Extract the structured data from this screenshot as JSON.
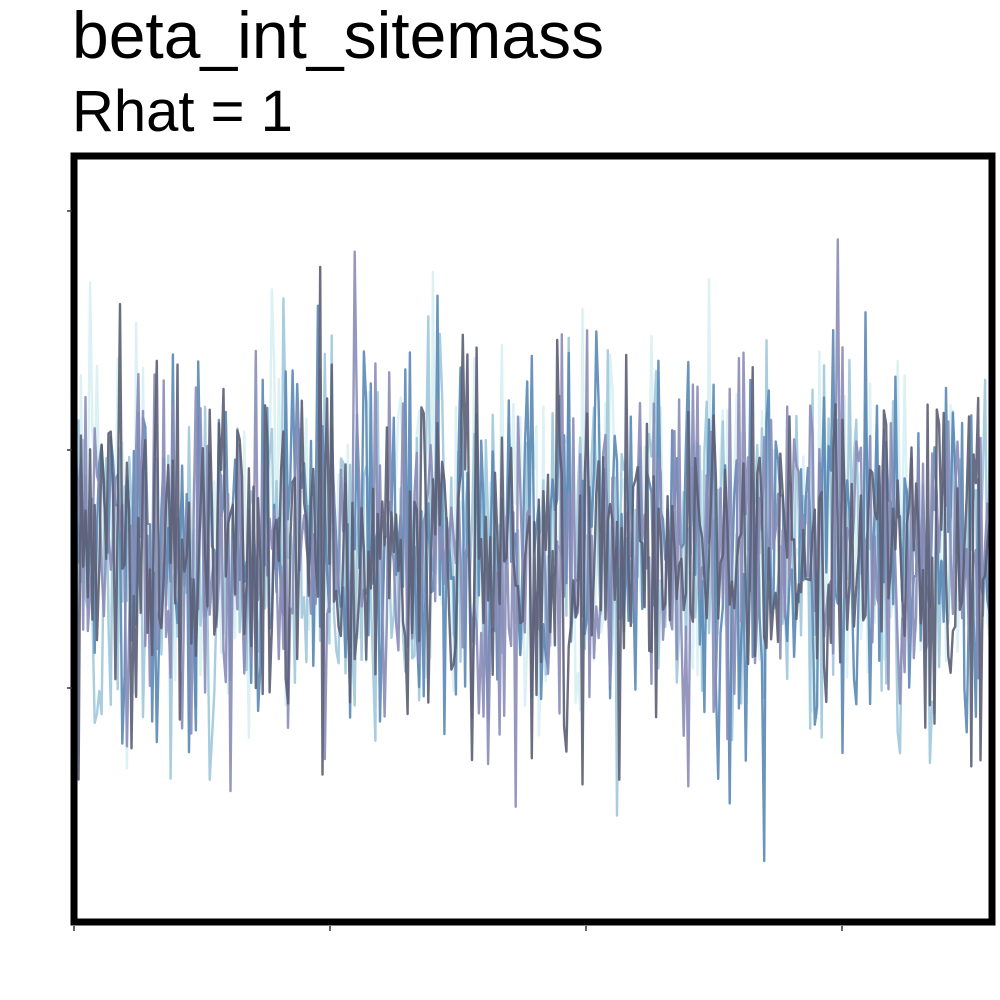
{
  "title": "beta_int_sitemass",
  "subtitle": "Rhat = 1",
  "chart_data": {
    "type": "line",
    "title": "beta_int_sitemass",
    "subtitle": "Rhat = 1",
    "xlabel": "",
    "ylabel": "",
    "x_tick_labels": [],
    "y_tick_labels": [],
    "n_iterations": 400,
    "y_range": [
      -0.08,
      1.08
    ],
    "legend": "none",
    "grid": false,
    "trace_center": 0.49,
    "trace_spread": 0.14,
    "series": [
      {
        "color": "#5b5e74"
      },
      {
        "color": "#8a8cb7"
      },
      {
        "color": "#5a88b5"
      },
      {
        "color": "#9ec8da"
      },
      {
        "color": "#d7f0f2"
      }
    ]
  }
}
